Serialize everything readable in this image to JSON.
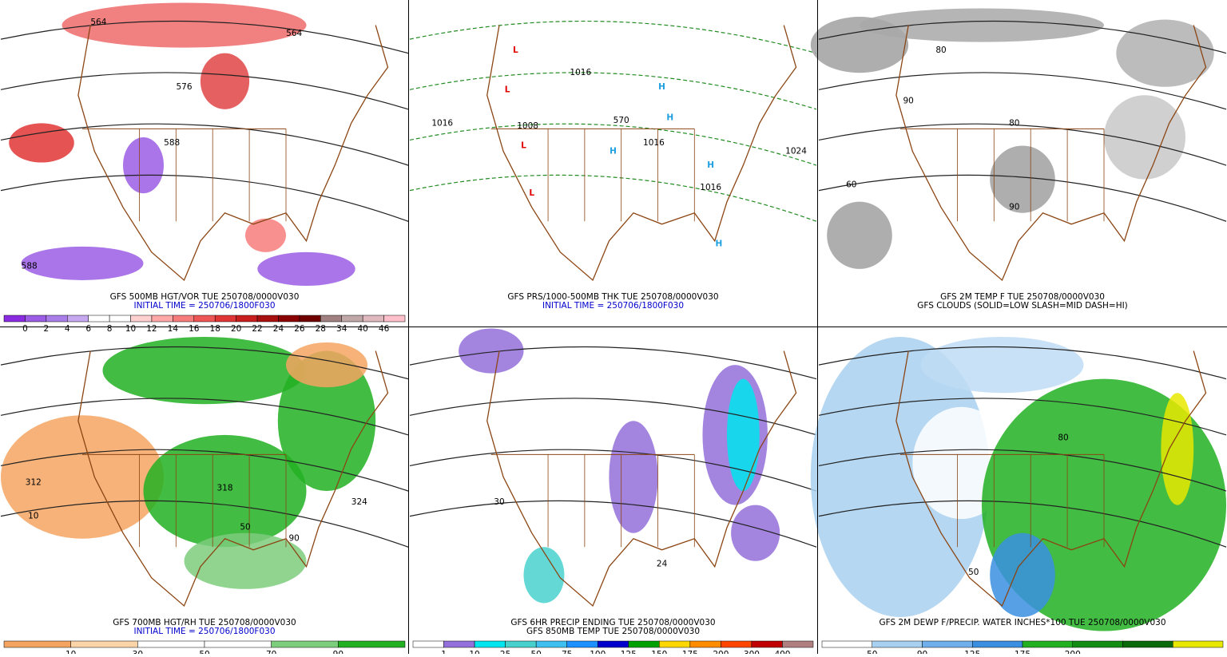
{
  "panels": [
    {
      "caption": [
        "GFS 500MB HGT/VOR TUE 250708/0000V030",
        "INITIAL TIME = 250706/1800F030"
      ],
      "colorbar": {
        "colors": [
          "#8a2be2",
          "#9b5de5",
          "#a97ee8",
          "#c6a8f0",
          "#ffffff",
          "#ffffff",
          "#ffd0d0",
          "#ffa8a8",
          "#f77d7d",
          "#ee5555",
          "#e03535",
          "#c81e1e",
          "#a80f0f",
          "#8b0000",
          "#700000",
          "#a08080",
          "#c0a8a8",
          "#e0b8c0",
          "#ffc0cb"
        ],
        "labels": [
          "0",
          "2",
          "4",
          "6",
          "8",
          "10",
          "12",
          "14",
          "16",
          "18",
          "20",
          "22",
          "24",
          "26",
          "28",
          "34",
          "40",
          "46"
        ]
      },
      "labels": [
        "564",
        "564",
        "576",
        "588",
        "588"
      ]
    },
    {
      "caption": [
        "GFS PRS/1000-500MB THK TUE 250708/0000V030",
        "INITIAL TIME = 250706/1800F030"
      ],
      "labels": [
        "1016",
        "1016",
        "1016",
        "1016",
        "1024",
        "1008",
        "570",
        "L",
        "L",
        "L",
        "L",
        "H",
        "H",
        "H",
        "H",
        "H"
      ]
    },
    {
      "caption": [
        "GFS 2M TEMP F TUE 250708/0000V030",
        "GFS CLOUDS (SOLID=LOW SLASH=MID DASH=HI)"
      ],
      "labels": [
        "80",
        "80",
        "90",
        "90",
        "60"
      ]
    },
    {
      "caption": [
        "GFS 700MB HGT/RH TUE 250708/0000V030",
        "INITIAL TIME = 250706/1800F030"
      ],
      "colorbar": {
        "colors": [
          "#f4a460",
          "#fbd4a8",
          "#ffffff",
          "#ffffff",
          "#7ccd7c",
          "#22b022"
        ],
        "labels": [
          "10",
          "30",
          "50",
          "70",
          "90"
        ]
      },
      "labels": [
        "312",
        "318",
        "324",
        "50",
        "10",
        "90"
      ]
    },
    {
      "caption": [
        "GFS 6HR PRECIP ENDING TUE 250708/0000V030",
        "GFS 850MB TEMP TUE 250708/0000V030"
      ],
      "colorbar": {
        "colors": [
          "#ffffff",
          "#9370db",
          "#00e5ee",
          "#48d1cc",
          "#40c0f0",
          "#1e90ff",
          "#0000cd",
          "#00a000",
          "#ffd700",
          "#ff8c00",
          "#ff4500",
          "#c00000",
          "#b08080"
        ],
        "labels": [
          "1",
          "10",
          "25",
          "50",
          "75",
          "100",
          "125",
          "150",
          "175",
          "200",
          "300",
          "400"
        ]
      },
      "labels": [
        "30",
        "24"
      ]
    },
    {
      "caption": [
        "GFS 2M DEWP F/PRECIP. WATER INCHES*100 TUE 250708/0000V030"
      ],
      "colorbar": {
        "colors": [
          "#ffffff",
          "#a8d0f0",
          "#6fb0ec",
          "#3a8fe0",
          "#22b022",
          "#128c12",
          "#0a6a0a",
          "#e8e800"
        ],
        "labels": [
          "50",
          "90",
          "125",
          "175",
          "200"
        ]
      },
      "labels": [
        "50",
        "80"
      ]
    }
  ]
}
